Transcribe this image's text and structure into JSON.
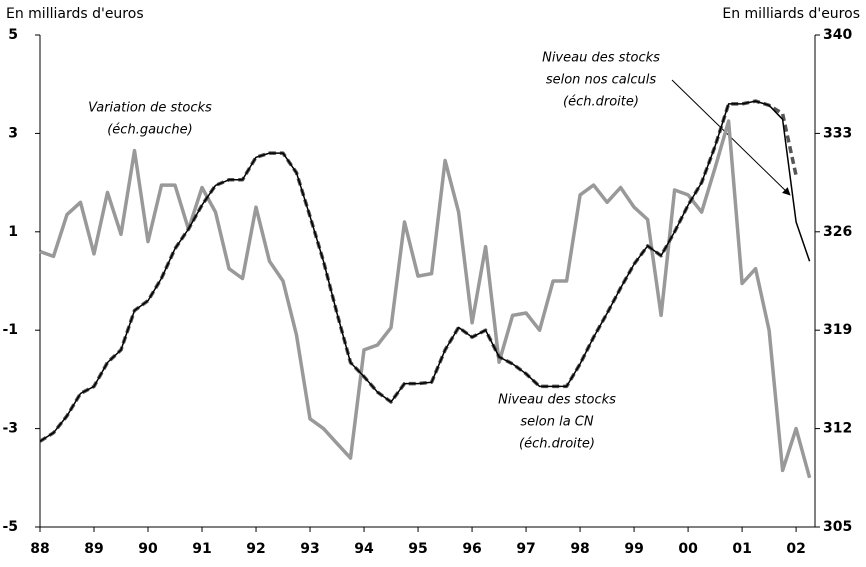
{
  "chart_data": {
    "type": "line",
    "y_label": "En milliards d'euros",
    "y2_label": "En milliards d'euros",
    "x": [
      1988,
      1988.25,
      1988.5,
      1988.75,
      1989,
      1989.25,
      1989.5,
      1989.75,
      1990,
      1990.25,
      1990.5,
      1990.75,
      1991,
      1991.25,
      1991.5,
      1991.75,
      1992,
      1992.25,
      1992.5,
      1992.75,
      1993,
      1993.25,
      1993.5,
      1993.75,
      1994,
      1994.25,
      1994.5,
      1994.75,
      1995,
      1995.25,
      1995.5,
      1995.75,
      1996,
      1996.25,
      1996.5,
      1996.75,
      1997,
      1997.25,
      1997.5,
      1997.75,
      1998,
      1998.25,
      1998.5,
      1998.75,
      1999,
      1999.25,
      1999.5,
      1999.75,
      2000,
      2000.25,
      2000.5,
      2000.75,
      2001,
      2001.25,
      2001.5,
      2001.75,
      2002,
      2002.25
    ],
    "xlim": [
      1988,
      2002.35
    ],
    "xticks": [
      {
        "value": 1988,
        "label": "88"
      },
      {
        "value": 1989,
        "label": "89"
      },
      {
        "value": 1990,
        "label": "90"
      },
      {
        "value": 1991,
        "label": "91"
      },
      {
        "value": 1992,
        "label": "92"
      },
      {
        "value": 1993,
        "label": "93"
      },
      {
        "value": 1994,
        "label": "94"
      },
      {
        "value": 1995,
        "label": "95"
      },
      {
        "value": 1996,
        "label": "96"
      },
      {
        "value": 1997,
        "label": "97"
      },
      {
        "value": 1998,
        "label": "98"
      },
      {
        "value": 1999,
        "label": "99"
      },
      {
        "value": 2000,
        "label": "00"
      },
      {
        "value": 2001,
        "label": "01"
      },
      {
        "value": 2002,
        "label": "02"
      }
    ],
    "ylim": [
      -5,
      5
    ],
    "yticks": [
      -5,
      -3,
      -1,
      1,
      3,
      5
    ],
    "y2lim": [
      305,
      340
    ],
    "y2ticks": [
      305,
      312,
      319,
      326,
      333,
      340
    ],
    "series": [
      {
        "name": "Variation de stocks",
        "color": "#999999",
        "axis": "y",
        "values": [
          0.6,
          0.5,
          1.35,
          1.6,
          0.55,
          1.8,
          0.95,
          2.65,
          0.8,
          1.95,
          1.95,
          1.05,
          1.9,
          1.4,
          0.25,
          0.05,
          1.5,
          0.4,
          0.0,
          -1.1,
          -2.8,
          -3.0,
          -3.3,
          -3.6,
          -1.4,
          -1.3,
          -0.95,
          1.2,
          0.1,
          0.15,
          2.45,
          1.4,
          -0.85,
          0.7,
          -1.65,
          -0.7,
          -0.65,
          -1.0,
          0.0,
          0.0,
          1.75,
          1.95,
          1.6,
          1.9,
          1.5,
          1.25,
          -0.7,
          1.85,
          1.75,
          1.4,
          2.3,
          3.25,
          -0.05,
          0.25,
          -1.0,
          -3.85,
          -3.0,
          -4.0
        ]
      },
      {
        "name": "Niveau des stocks selon nos calculs",
        "color": "#555555",
        "axis": "y2",
        "dashed": true,
        "values": [
          311.1,
          311.7,
          312.9,
          314.5,
          315.0,
          316.7,
          317.6,
          320.4,
          321.1,
          322.7,
          324.8,
          326.2,
          327.9,
          329.3,
          329.7,
          329.7,
          331.3,
          331.6,
          331.6,
          330.2,
          327.1,
          323.9,
          320.2,
          316.7,
          315.7,
          314.6,
          313.9,
          315.2,
          315.2,
          315.3,
          317.6,
          319.2,
          318.5,
          319.0,
          317.1,
          316.6,
          315.9,
          315.0,
          315.0,
          315.0,
          316.6,
          318.5,
          320.2,
          322.0,
          323.7,
          325.0,
          324.3,
          326.0,
          327.9,
          329.5,
          332.1,
          335.1,
          335.1,
          335.3,
          335.0,
          334.4,
          330.0,
          null
        ]
      },
      {
        "name": "Niveau des stocks selon la CN",
        "color": "#000000",
        "axis": "y2",
        "values": [
          311.1,
          311.7,
          312.9,
          314.5,
          315.0,
          316.7,
          317.6,
          320.4,
          321.1,
          322.7,
          324.8,
          326.2,
          327.9,
          329.3,
          329.7,
          329.7,
          331.3,
          331.6,
          331.6,
          330.2,
          327.1,
          323.9,
          320.2,
          316.7,
          315.7,
          314.6,
          313.9,
          315.2,
          315.2,
          315.3,
          317.6,
          319.2,
          318.5,
          319.0,
          317.1,
          316.6,
          315.9,
          315.0,
          315.0,
          315.0,
          316.6,
          318.5,
          320.2,
          322.0,
          323.7,
          325.0,
          324.3,
          326.0,
          327.9,
          329.5,
          332.1,
          335.1,
          335.1,
          335.3,
          335.0,
          334.0,
          326.7,
          323.9
        ]
      }
    ],
    "annotations": [
      {
        "lines": [
          "Variation de stocks",
          "(éch.gauche)"
        ]
      },
      {
        "lines": [
          "Niveau des stocks",
          "selon nos calculs",
          "(éch.droite)"
        ]
      },
      {
        "lines": [
          "Niveau des stocks",
          "selon la CN",
          "(éch.droite)"
        ]
      }
    ]
  }
}
